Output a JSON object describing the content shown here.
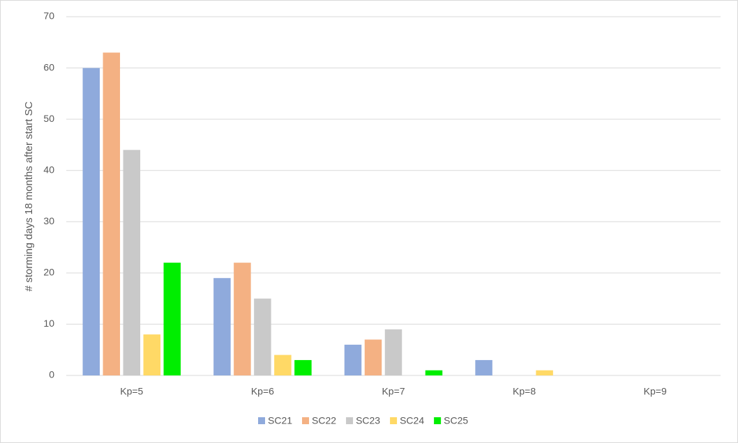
{
  "chart_data": {
    "type": "bar",
    "y_label": "# storming days 18 months after start SC",
    "categories": [
      "Kp=5",
      "Kp=6",
      "Kp=7",
      "Kp=8",
      "Kp=9"
    ],
    "series": [
      {
        "name": "SC21",
        "color": "#8faadc",
        "values": [
          60,
          19,
          6,
          3,
          0
        ]
      },
      {
        "name": "SC22",
        "color": "#f4b183",
        "values": [
          63,
          22,
          7,
          0,
          0
        ]
      },
      {
        "name": "SC23",
        "color": "#c9c9c9",
        "values": [
          44,
          15,
          9,
          0,
          0
        ]
      },
      {
        "name": "SC24",
        "color": "#ffd966",
        "values": [
          8,
          4,
          0,
          1,
          0
        ]
      },
      {
        "name": "SC25",
        "color": "#00ee00",
        "values": [
          22,
          3,
          1,
          0,
          0
        ]
      }
    ],
    "ylim": [
      0,
      70
    ],
    "yticks": [
      0,
      10,
      20,
      30,
      40,
      50,
      60,
      70
    ],
    "grid": true,
    "legend": "bottom"
  }
}
